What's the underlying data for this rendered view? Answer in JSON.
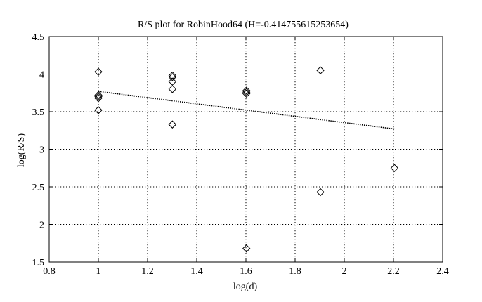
{
  "chart_data": {
    "type": "scatter",
    "title": "R/S plot for RobinHood64 (H=-0.414755615253654)",
    "xlabel": "log(d)",
    "ylabel": "log(R/S)",
    "xlim": [
      0.8,
      2.4
    ],
    "ylim": [
      1.5,
      4.5
    ],
    "xticks": [
      "0.8",
      "1",
      "1.2",
      "1.4",
      "1.6",
      "1.8",
      "2",
      "2.2",
      "2.4"
    ],
    "yticks": [
      "1.5",
      "2",
      "2.5",
      "3",
      "3.5",
      "4",
      "4.5"
    ],
    "grid": true,
    "marker": "diamond",
    "series": [
      {
        "points": [
          [
            1.0,
            4.03
          ],
          [
            1.0,
            3.72
          ],
          [
            1.0,
            3.7
          ],
          [
            1.0,
            3.68
          ],
          [
            1.0,
            3.52
          ],
          [
            1.301,
            3.98
          ],
          [
            1.301,
            3.96
          ],
          [
            1.301,
            3.9
          ],
          [
            1.301,
            3.8
          ],
          [
            1.301,
            3.33
          ],
          [
            1.301,
            3.33
          ],
          [
            1.602,
            3.78
          ],
          [
            1.602,
            3.76
          ],
          [
            1.602,
            3.74
          ],
          [
            1.602,
            1.68
          ],
          [
            1.903,
            4.05
          ],
          [
            1.903,
            2.43
          ],
          [
            2.204,
            2.75
          ]
        ]
      }
    ],
    "fit_line": {
      "x": [
        1.0,
        2.204
      ],
      "y": [
        3.77,
        3.27
      ],
      "style": "dotted"
    }
  }
}
